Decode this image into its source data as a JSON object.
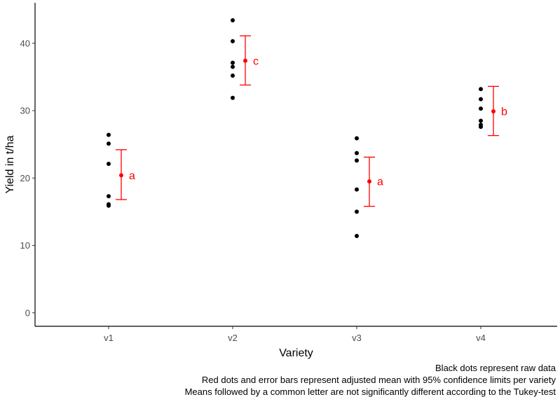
{
  "chart_data": {
    "type": "scatter",
    "xlabel": "Variety",
    "ylabel": "Yield in t/ha",
    "categories": [
      "v1",
      "v2",
      "v3",
      "v4"
    ],
    "ylim": [
      -2,
      46
    ],
    "yticks": [
      0,
      10,
      20,
      30,
      40
    ],
    "grid": false,
    "raw_data": {
      "name": "Black dots",
      "color": "#000000",
      "points": [
        {
          "variety": "v1",
          "values": [
            26.4,
            25.1,
            22.1,
            17.3,
            16.1,
            15.9
          ]
        },
        {
          "variety": "v2",
          "values": [
            43.4,
            40.3,
            37.1,
            36.5,
            35.2,
            31.9
          ]
        },
        {
          "variety": "v3",
          "values": [
            25.9,
            23.7,
            22.6,
            18.3,
            15.0,
            11.4
          ]
        },
        {
          "variety": "v4",
          "values": [
            33.2,
            31.7,
            30.3,
            28.5,
            27.9,
            27.6
          ]
        }
      ]
    },
    "adjusted_means": {
      "name": "Red dots and error bars",
      "color": "#ff0000",
      "items": [
        {
          "variety": "v1",
          "mean": 20.4,
          "lower": 16.8,
          "upper": 24.2,
          "letter": "a"
        },
        {
          "variety": "v2",
          "mean": 37.4,
          "lower": 33.8,
          "upper": 41.1,
          "letter": "c"
        },
        {
          "variety": "v3",
          "mean": 19.5,
          "lower": 15.8,
          "upper": 23.1,
          "letter": "a"
        },
        {
          "variety": "v4",
          "mean": 29.9,
          "lower": 26.3,
          "upper": 33.6,
          "letter": "b"
        }
      ]
    }
  },
  "caption": {
    "line1": "Black dots represent raw data",
    "line2": "Red dots and error bars represent adjusted mean with 95% confidence limits per variety",
    "line3": "Means followed by a common letter are not significantly different according to the Tukey-test"
  }
}
